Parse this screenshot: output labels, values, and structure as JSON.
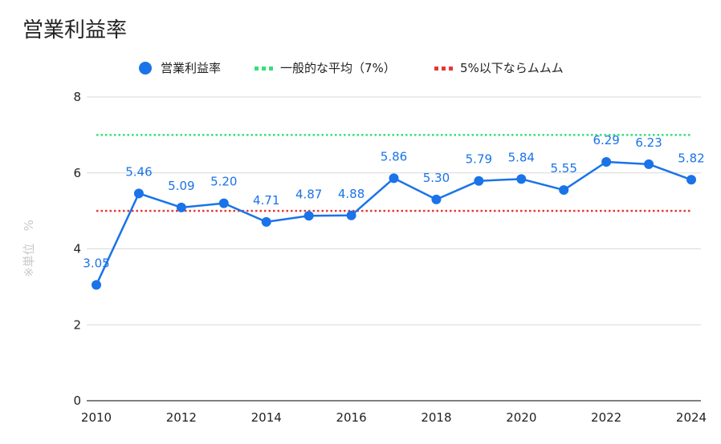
{
  "chart_data": {
    "type": "line",
    "title": "営業利益率",
    "ylabel": "※単位　%",
    "xlabel": "",
    "x": [
      2010,
      2011,
      2012,
      2013,
      2014,
      2015,
      2016,
      2017,
      2018,
      2019,
      2020,
      2021,
      2022,
      2023,
      2024
    ],
    "x_ticks": [
      "2010",
      "2012",
      "2014",
      "2016",
      "2018",
      "2020",
      "2022",
      "2024"
    ],
    "y_ticks": [
      "0",
      "2",
      "4",
      "6",
      "8"
    ],
    "ylim": [
      0,
      8
    ],
    "grid": true,
    "legend_position": "top",
    "series": [
      {
        "name": "営業利益率",
        "color": "#1a73e8",
        "values": [
          3.05,
          5.46,
          5.09,
          5.2,
          4.71,
          4.87,
          4.88,
          5.86,
          5.3,
          5.79,
          5.84,
          5.55,
          6.29,
          6.23,
          5.82
        ],
        "labels": [
          "3.05",
          "5.46",
          "5.09",
          "5.20",
          "4.71",
          "4.87",
          "4.88",
          "5.86",
          "5.30",
          "5.79",
          "5.84",
          "5.55",
          "6.29",
          "6.23",
          "5.82"
        ]
      }
    ],
    "reference_lines": [
      {
        "name": "一般的な平均（7%）",
        "value": 7,
        "color": "#34e07a",
        "style": "dotted"
      },
      {
        "name": "5%以下ならムムム",
        "value": 5,
        "color": "#e53935",
        "style": "dotted"
      }
    ]
  }
}
